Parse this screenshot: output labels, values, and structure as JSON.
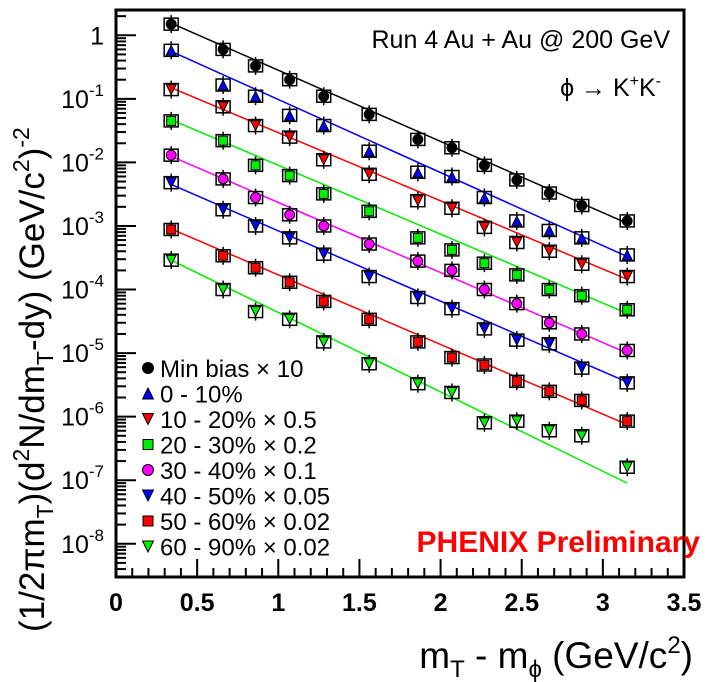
{
  "chart_data": {
    "type": "scatter",
    "title": "Run 4 Au + Au @ 200 GeV",
    "subtitle": {
      "pre": "ϕ → K",
      "sup1": "+",
      "mid": "K",
      "sup2": "-"
    },
    "xlabel": {
      "pre": "m",
      "sub1": "T",
      "mid": " - m",
      "sub2": "ϕ",
      "post": " (GeV/c",
      "sup": "2",
      "end": ")"
    },
    "ylabel": {
      "p1": "(1/2πm",
      "s1": "T",
      "p2": ")(d",
      "s2": "2",
      "p3": "N/dm",
      "s3": "T",
      "p4": "-dy) (GeV/c",
      "s4": "2",
      "p5": ")",
      "s5": "-2"
    },
    "xlim": [
      0,
      3.5
    ],
    "ylog": true,
    "ylim": [
      3e-09,
      2.5
    ],
    "x_ticks": [
      0,
      0.5,
      1,
      1.5,
      2,
      2.5,
      3,
      3.5
    ],
    "x_tick_labels": [
      "0",
      "0.5",
      "1",
      "1.5",
      "2",
      "2.5",
      "3",
      "3.5"
    ],
    "y_ticks": [
      {
        "value": 1,
        "base": "1",
        "exp": ""
      },
      {
        "value": 0.1,
        "base": "10",
        "exp": "-1"
      },
      {
        "value": 0.01,
        "base": "10",
        "exp": "-2"
      },
      {
        "value": 0.001,
        "base": "10",
        "exp": "-3"
      },
      {
        "value": 0.0001,
        "base": "10",
        "exp": "-4"
      },
      {
        "value": 1e-05,
        "base": "10",
        "exp": "-5"
      },
      {
        "value": 1e-06,
        "base": "10",
        "exp": "-6"
      },
      {
        "value": 1e-07,
        "base": "10",
        "exp": "-7"
      },
      {
        "value": 1e-08,
        "base": "10",
        "exp": "-8"
      }
    ],
    "x": [
      0.34,
      0.66,
      0.86,
      1.07,
      1.28,
      1.56,
      1.86,
      2.07,
      2.27,
      2.47,
      2.67,
      2.87,
      3.15
    ],
    "series": [
      {
        "name": "Min bias × 10",
        "color": "#000000",
        "marker": "circle",
        "values": [
          1.5,
          0.6,
          0.33,
          0.2,
          0.11,
          0.057,
          0.023,
          0.017,
          0.009,
          0.0053,
          0.0033,
          0.0021,
          0.0012
        ],
        "fit": [
          1.55,
          0.0011
        ]
      },
      {
        "name": "0 - 10%",
        "color": "#0000ff",
        "marker": "triangle-up",
        "values": [
          0.58,
          0.165,
          0.11,
          0.055,
          0.038,
          0.015,
          0.007,
          0.006,
          0.0028,
          0.0012,
          0.00085,
          0.00065,
          0.00035
        ],
        "fit": [
          0.56,
          0.00033
        ]
      },
      {
        "name": "10 - 20% × 0.5",
        "color": "#ff0000",
        "marker": "triangle-down",
        "values": [
          0.14,
          0.075,
          0.038,
          0.025,
          0.011,
          0.0065,
          0.0025,
          0.0019,
          0.00095,
          0.00055,
          0.0004,
          0.00025,
          0.00016
        ],
        "fit": [
          0.15,
          0.000145
        ]
      },
      {
        "name": "20 - 30% × 0.2",
        "color": "#00ee00",
        "marker": "square",
        "values": [
          0.045,
          0.022,
          0.009,
          0.0062,
          0.0032,
          0.0017,
          0.00065,
          0.00042,
          0.00026,
          0.00017,
          0.0001,
          8e-05,
          4.8e-05
        ],
        "fit": [
          0.047,
          4.2e-05
        ]
      },
      {
        "name": "30 - 40% × 0.1",
        "color": "#ff00ff",
        "marker": "circle",
        "values": [
          0.013,
          0.0055,
          0.0028,
          0.0015,
          0.001,
          0.00052,
          0.00028,
          0.0002,
          0.0001,
          6e-05,
          3e-05,
          2e-05,
          1.1e-05
        ],
        "fit": [
          0.0125,
          1e-05
        ]
      },
      {
        "name": "40 - 50% × 0.05",
        "color": "#0000ff",
        "marker": "triangle-down",
        "values": [
          0.0048,
          0.0018,
          0.001,
          0.00065,
          0.00036,
          0.00016,
          7.5e-05,
          5e-05,
          2.4e-05,
          1.6e-05,
          1.4e-05,
          5.8e-06,
          3.4e-06
        ],
        "fit": [
          0.0045,
          3.5e-06
        ]
      },
      {
        "name": "50 - 60% × 0.02",
        "color": "#ff0000",
        "marker": "square",
        "values": [
          0.00088,
          0.00034,
          0.00022,
          0.00013,
          6.5e-05,
          3.4e-05,
          1.5e-05,
          8.5e-06,
          6.5e-06,
          3.6e-06,
          2.5e-06,
          1.8e-06,
          8.5e-07
        ],
        "fit": [
          0.0009,
          7.5e-07
        ]
      },
      {
        "name": "60 - 90% × 0.02",
        "color": "#00ee00",
        "marker": "triangle-down",
        "values": [
          0.00029,
          0.0001,
          4.5e-05,
          3.4e-05,
          1.5e-05,
          6.8e-06,
          3.3e-06,
          2.4e-06,
          8e-07,
          8.5e-07,
          6e-07,
          5e-07,
          1.6e-07
        ],
        "fit": [
          0.00029,
          9e-08
        ]
      }
    ],
    "annotation": "PHENIX Preliminary",
    "annotation_color": "#ff0000",
    "legend_position": "bottom-left"
  }
}
